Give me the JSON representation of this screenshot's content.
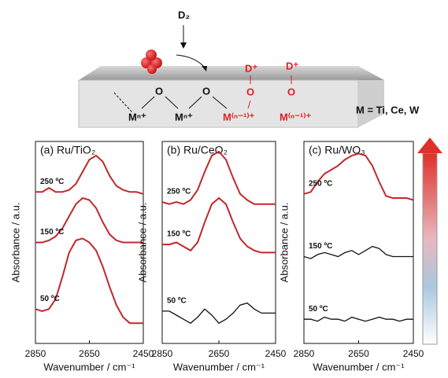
{
  "schematic": {
    "molecule": "D₂",
    "adsorbates": [
      "D⁺",
      "D⁺"
    ],
    "oxygens": [
      "O",
      "O",
      "O",
      "O"
    ],
    "metals": [
      "Mⁿ⁺",
      "Mⁿ⁺",
      "M⁽ⁿ⁻¹⁾⁺",
      "M⁽ⁿ⁻¹⁾⁺"
    ],
    "legend": "M = Ti, Ce, W"
  },
  "chart_data": [
    {
      "type": "line",
      "title": "(a) Ru/TiO₂",
      "x_label": "Wavenumber / cm⁻¹",
      "y_label": "Absorbance / a.u.",
      "x": [
        2850,
        2825,
        2800,
        2775,
        2750,
        2725,
        2700,
        2675,
        2650,
        2625,
        2600,
        2575,
        2550,
        2525,
        2500,
        2475,
        2450
      ],
      "xlim": [
        2850,
        2450
      ],
      "xticks": [
        2850,
        2650,
        2450
      ],
      "ylim": [
        0,
        10
      ],
      "series": [
        {
          "name": "250 ºC",
          "color": "#c0282d",
          "values": [
            7.5,
            7.5,
            7.7,
            7.5,
            7.5,
            7.6,
            7.9,
            8.5,
            9.1,
            9.3,
            9.0,
            8.3,
            7.8,
            7.6,
            7.5,
            7.5,
            7.4
          ]
        },
        {
          "name": "150 ºC",
          "color": "#c0282d",
          "values": [
            5.0,
            5.0,
            5.1,
            5.3,
            5.7,
            6.3,
            6.9,
            7.2,
            7.1,
            6.7,
            6.0,
            5.4,
            5.1,
            5.0,
            5.0,
            5.0,
            5.0
          ]
        },
        {
          "name": "50 ºC",
          "color": "#c0282d",
          "values": [
            1.7,
            1.6,
            1.7,
            2.2,
            3.3,
            4.5,
            5.1,
            5.2,
            5.0,
            4.6,
            3.8,
            2.8,
            1.9,
            1.3,
            1.0,
            1.0,
            1.0
          ]
        }
      ]
    },
    {
      "type": "line",
      "title": "(b) Ru/CeO₂",
      "x_label": "Wavenumber / cm⁻¹",
      "y_label": "Absorbance / a.u.",
      "x": [
        2850,
        2825,
        2800,
        2775,
        2750,
        2725,
        2700,
        2675,
        2650,
        2625,
        2600,
        2575,
        2550,
        2525,
        2500,
        2475,
        2450
      ],
      "xlim": [
        2850,
        2450
      ],
      "xticks": [
        2850,
        2650,
        2450
      ],
      "ylim": [
        0,
        10
      ],
      "series": [
        {
          "name": "250 ºC",
          "color": "#c0282d",
          "values": [
            7.0,
            6.9,
            7.0,
            6.9,
            7.1,
            7.6,
            8.5,
            9.3,
            9.5,
            9.1,
            8.2,
            7.4,
            7.1,
            6.9,
            6.9,
            6.9,
            6.9
          ]
        },
        {
          "name": "150 ºC",
          "color": "#c0282d",
          "values": [
            4.9,
            4.9,
            5.0,
            4.8,
            4.6,
            5.0,
            6.0,
            6.9,
            7.2,
            6.9,
            6.0,
            5.2,
            4.8,
            4.6,
            4.5,
            4.5,
            4.5
          ]
        },
        {
          "name": "50 ºC",
          "color": "#111111",
          "values": [
            1.6,
            1.6,
            1.4,
            1.2,
            1.0,
            1.3,
            1.7,
            1.4,
            1.0,
            1.2,
            1.5,
            1.9,
            2.0,
            1.7,
            1.5,
            1.5,
            1.5
          ]
        }
      ]
    },
    {
      "type": "line",
      "title": "(c) Ru/WO₃",
      "x_label": "Wavenumber / cm⁻¹",
      "y_label": "Absorbance / a.u.",
      "x": [
        2850,
        2825,
        2800,
        2775,
        2750,
        2725,
        2700,
        2675,
        2650,
        2625,
        2600,
        2575,
        2550,
        2525,
        2500,
        2475,
        2450
      ],
      "xlim": [
        2850,
        2450
      ],
      "xticks": [
        2850,
        2650,
        2450
      ],
      "ylim": [
        0,
        10
      ],
      "series": [
        {
          "name": "250 ºC",
          "color": "#c0282d",
          "values": [
            7.4,
            7.5,
            8.0,
            8.4,
            8.6,
            8.8,
            9.1,
            9.3,
            9.4,
            9.3,
            8.8,
            8.0,
            7.3,
            7.2,
            7.2,
            7.2,
            7.1
          ]
        },
        {
          "name": "150 ºC",
          "color": "#111111",
          "values": [
            4.3,
            4.2,
            4.4,
            4.5,
            4.4,
            4.3,
            4.5,
            4.6,
            4.4,
            4.6,
            4.8,
            4.7,
            4.4,
            4.3,
            4.3,
            4.3,
            4.3
          ]
        },
        {
          "name": "50 ºC",
          "color": "#111111",
          "values": [
            1.2,
            1.2,
            1.1,
            1.3,
            1.2,
            1.2,
            1.1,
            1.3,
            1.2,
            1.1,
            1.2,
            1.3,
            1.2,
            1.2,
            1.1,
            1.2,
            1.2
          ]
        }
      ]
    }
  ]
}
